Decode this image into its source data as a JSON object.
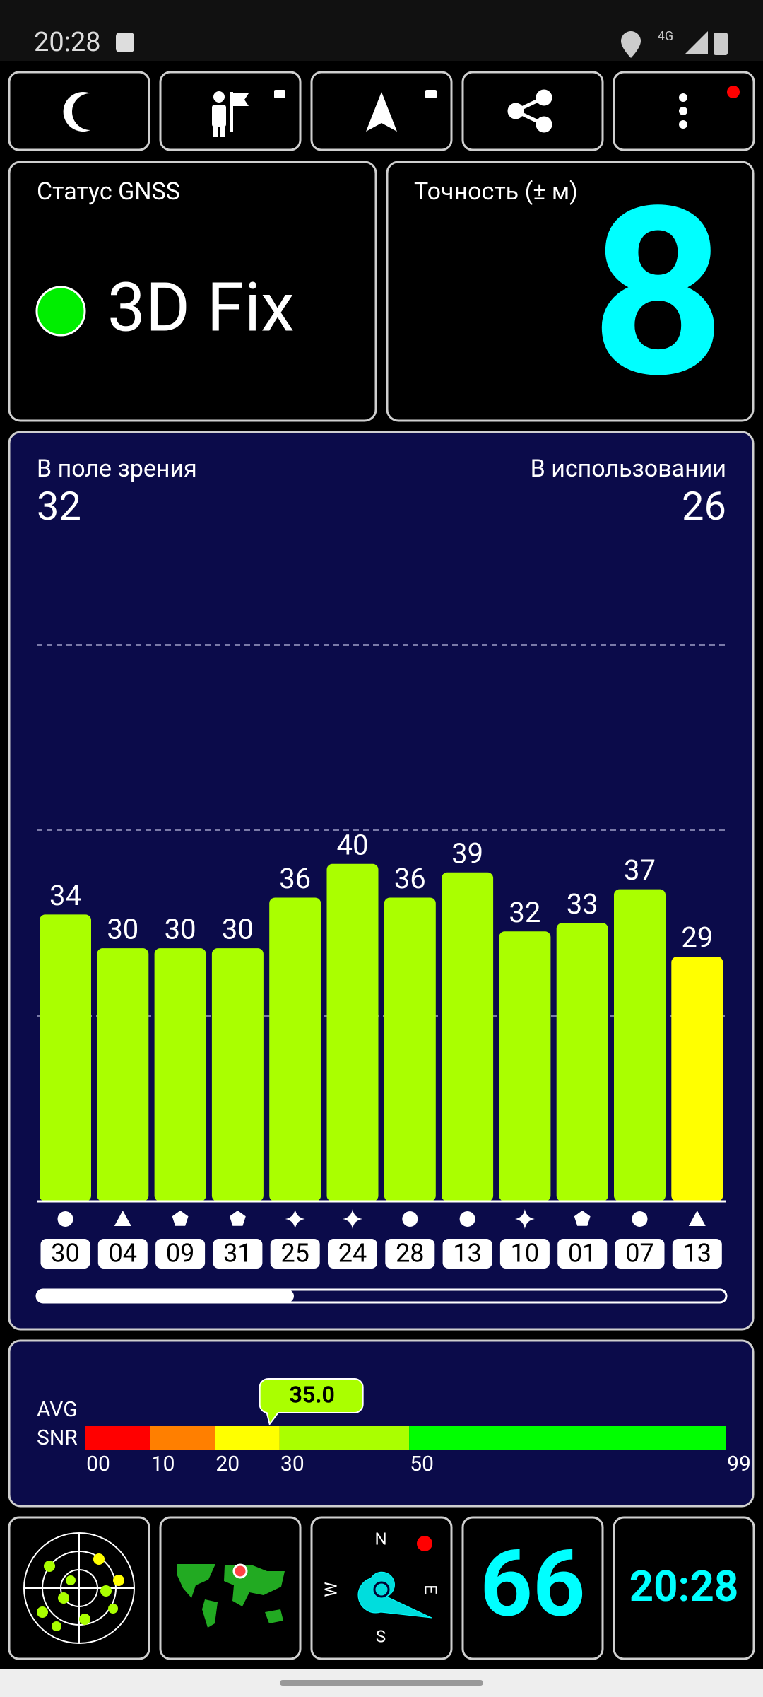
{
  "status_bar": {
    "time": "20:28",
    "network": "4G"
  },
  "gnss_status": {
    "label": "Статус GNSS",
    "value": "3D Fix"
  },
  "accuracy": {
    "label": "Точность (± м)",
    "value": 8
  },
  "satellites": {
    "in_view_label": "В поле зрения",
    "in_view": 32,
    "in_use_label": "В использовании",
    "in_use": 26,
    "bars": [
      {
        "id": "30",
        "snr": 34,
        "color": "#aaff00",
        "shape": "circle"
      },
      {
        "id": "04",
        "snr": 30,
        "color": "#aaff00",
        "shape": "triangle"
      },
      {
        "id": "09",
        "snr": 30,
        "color": "#aaff00",
        "shape": "pentagon"
      },
      {
        "id": "31",
        "snr": 30,
        "color": "#aaff00",
        "shape": "pentagon"
      },
      {
        "id": "25",
        "snr": 36,
        "color": "#aaff00",
        "shape": "star"
      },
      {
        "id": "24",
        "snr": 40,
        "color": "#aaff00",
        "shape": "star"
      },
      {
        "id": "28",
        "snr": 36,
        "color": "#aaff00",
        "shape": "circle"
      },
      {
        "id": "13",
        "snr": 39,
        "color": "#aaff00",
        "shape": "circle"
      },
      {
        "id": "10",
        "snr": 32,
        "color": "#aaff00",
        "shape": "star"
      },
      {
        "id": "01",
        "snr": 33,
        "color": "#aaff00",
        "shape": "pentagon"
      },
      {
        "id": "07",
        "snr": 37,
        "color": "#aaff00",
        "shape": "circle"
      },
      {
        "id": "13",
        "snr": 29,
        "color": "#ffff00",
        "shape": "triangle"
      }
    ]
  },
  "snr": {
    "avg_label": "AVG",
    "snr_label": "SNR",
    "average": {
      "value": 35,
      "label": "35.0"
    },
    "ticks": [
      {
        "value": 0,
        "label": "00"
      },
      10,
      20,
      30,
      50,
      99
    ],
    "colors": [
      "#ff0000",
      "#ff7f00",
      "#ffff00",
      "#aaff00",
      "#00ff00"
    ]
  },
  "widgets": {
    "compass": {
      "north": "N",
      "east": "E",
      "south": "S",
      "west": "W"
    },
    "speed": 66,
    "clock": "20:28"
  }
}
